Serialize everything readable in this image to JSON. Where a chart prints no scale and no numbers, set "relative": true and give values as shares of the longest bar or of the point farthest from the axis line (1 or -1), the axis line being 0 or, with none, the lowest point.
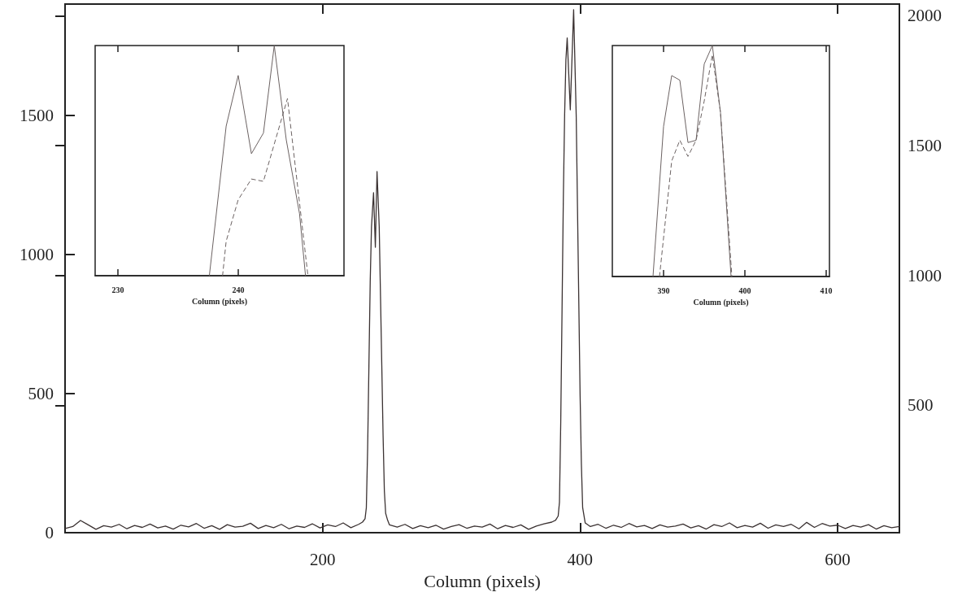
{
  "chart_data": [
    {
      "type": "line",
      "xlabel": "Column (pixels)",
      "color": "#3b3232",
      "xlim": [
        0,
        648
      ],
      "xticks": [
        200,
        400,
        600
      ],
      "ylim": [
        0,
        1900
      ],
      "yticks": [
        0,
        500,
        1000,
        1500
      ],
      "y2lim": [
        10,
        2045
      ],
      "y2ticks": [
        500,
        1000,
        1500,
        2000
      ],
      "x": [
        0,
        6,
        12,
        18,
        24,
        30,
        36,
        42,
        48,
        54,
        60,
        66,
        72,
        78,
        84,
        90,
        96,
        102,
        108,
        114,
        120,
        126,
        132,
        138,
        144,
        150,
        156,
        162,
        168,
        174,
        180,
        186,
        192,
        198,
        204,
        210,
        216,
        222,
        228,
        231,
        233,
        234,
        235,
        236,
        237,
        238,
        239.6,
        241,
        242.3,
        244,
        245,
        246,
        247,
        248,
        249,
        250.5,
        252,
        258,
        264,
        270,
        276,
        282,
        288,
        294,
        300,
        306,
        312,
        318,
        324,
        330,
        336,
        342,
        348,
        354,
        360,
        366,
        372,
        378,
        381,
        383,
        384,
        385,
        386,
        387,
        388,
        389,
        390,
        392.4,
        395,
        397,
        398.5,
        400,
        401,
        402,
        404,
        408,
        414,
        420,
        426,
        432,
        438,
        444,
        450,
        456,
        462,
        468,
        474,
        480,
        486,
        492,
        498,
        504,
        510,
        516,
        522,
        528,
        534,
        540,
        546,
        552,
        558,
        564,
        570,
        576,
        582,
        588,
        594,
        600,
        606,
        612,
        618,
        624,
        630,
        636,
        642,
        648
      ],
      "values": [
        15,
        22,
        44,
        28,
        12,
        25,
        20,
        30,
        14,
        26,
        19,
        31,
        17,
        24,
        13,
        27,
        21,
        33,
        16,
        25,
        12,
        29,
        20,
        23,
        34,
        15,
        26,
        18,
        30,
        14,
        24,
        19,
        32,
        17,
        28,
        22,
        35,
        18,
        30,
        38,
        50,
        90,
        300,
        600,
        900,
        1100,
        1222,
        1026,
        1298,
        1100,
        850,
        600,
        350,
        150,
        70,
        45,
        28,
        20,
        30,
        15,
        25,
        18,
        27,
        13,
        22,
        29,
        16,
        24,
        20,
        31,
        14,
        26,
        19,
        28,
        12,
        24,
        32,
        38,
        45,
        60,
        110,
        400,
        800,
        1200,
        1500,
        1700,
        1778,
        1520,
        1880,
        1500,
        1000,
        500,
        250,
        90,
        35,
        22,
        30,
        16,
        27,
        19,
        33,
        21,
        26,
        15,
        28,
        20,
        24,
        31,
        17,
        25,
        13,
        29,
        22,
        35,
        18,
        26,
        20,
        34,
        16,
        28,
        22,
        30,
        14,
        37,
        19,
        33,
        24,
        27,
        15,
        26,
        20,
        29,
        13,
        25,
        18,
        22
      ]
    },
    {
      "type": "line",
      "xlabel": "Column (pixels)",
      "relative": true,
      "xlim": [
        228.1,
        248.8
      ],
      "xticks": [
        230,
        240
      ],
      "series": [
        {
          "color": "#6b6262",
          "line_style": "solid",
          "x": [
            237.6,
            239,
            240,
            241.1,
            242.1,
            243,
            244,
            245.1,
            245.6
          ],
          "values": [
            0,
            0.65,
            0.87,
            0.53,
            0.62,
            1,
            0.59,
            0.27,
            0
          ]
        },
        {
          "color": "#6b6262",
          "line_style": "dashed",
          "x": [
            238.7,
            239,
            240,
            241.1,
            242.1,
            244.1,
            245.8
          ],
          "values": [
            0,
            0.15,
            0.33,
            0.42,
            0.41,
            0.77,
            0
          ]
        }
      ]
    },
    {
      "type": "line",
      "xlabel": "Column (pixels)",
      "relative": true,
      "xlim": [
        383.7,
        410.4
      ],
      "xticks": [
        390,
        400,
        410
      ],
      "series": [
        {
          "color": "#6b6262",
          "line_style": "solid",
          "x": [
            388.7,
            390,
            391,
            392,
            393,
            394,
            395,
            396,
            397,
            398.3
          ],
          "values": [
            0,
            0.65,
            0.87,
            0.85,
            0.58,
            0.59,
            0.92,
            1,
            0.71,
            0
          ]
        },
        {
          "color": "#6b6262",
          "line_style": "dashed",
          "x": [
            389.5,
            391,
            392,
            393,
            394,
            395,
            396,
            397,
            398.4
          ],
          "values": [
            0,
            0.5,
            0.59,
            0.52,
            0.59,
            0.76,
            0.96,
            0.71,
            0
          ]
        }
      ]
    }
  ]
}
